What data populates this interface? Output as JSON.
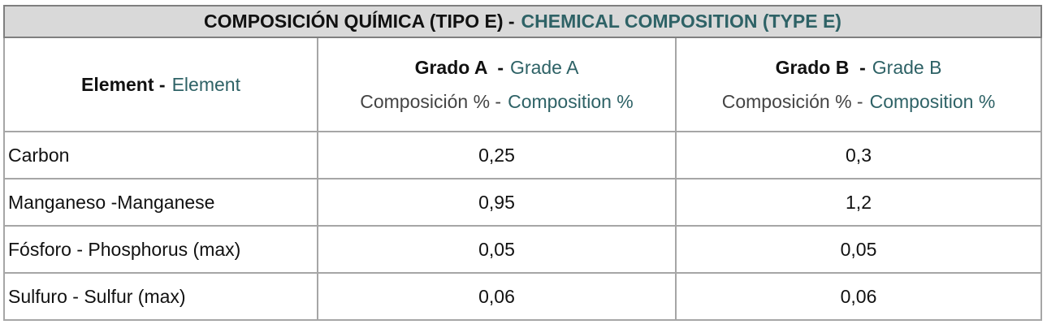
{
  "table": {
    "title": {
      "es": "COMPOSICIÓN QUÍMICA (TIPO E) -",
      "en": "CHEMICAL COMPOSITION (TYPE E)"
    },
    "header": [
      {
        "es": "Element -",
        "en": "Element"
      },
      {
        "es": "Grado A  -",
        "en": "Grade A",
        "sub_es": "Composición % -",
        "sub_en": "Composition %"
      },
      {
        "es": "Grado B  -",
        "en": "Grade B",
        "sub_es": "Composición % -",
        "sub_en": "Composition %"
      }
    ],
    "rows": [
      [
        "Carbon",
        "0,25",
        "0,3"
      ],
      [
        "Manganeso -Manganese",
        "0,95",
        "1,2"
      ],
      [
        "Fósforo - Phosphorus (max)",
        "0,05",
        "0,05"
      ],
      [
        "Sulfuro - Sulfur (max)",
        "0,06",
        "0,06"
      ]
    ]
  }
}
